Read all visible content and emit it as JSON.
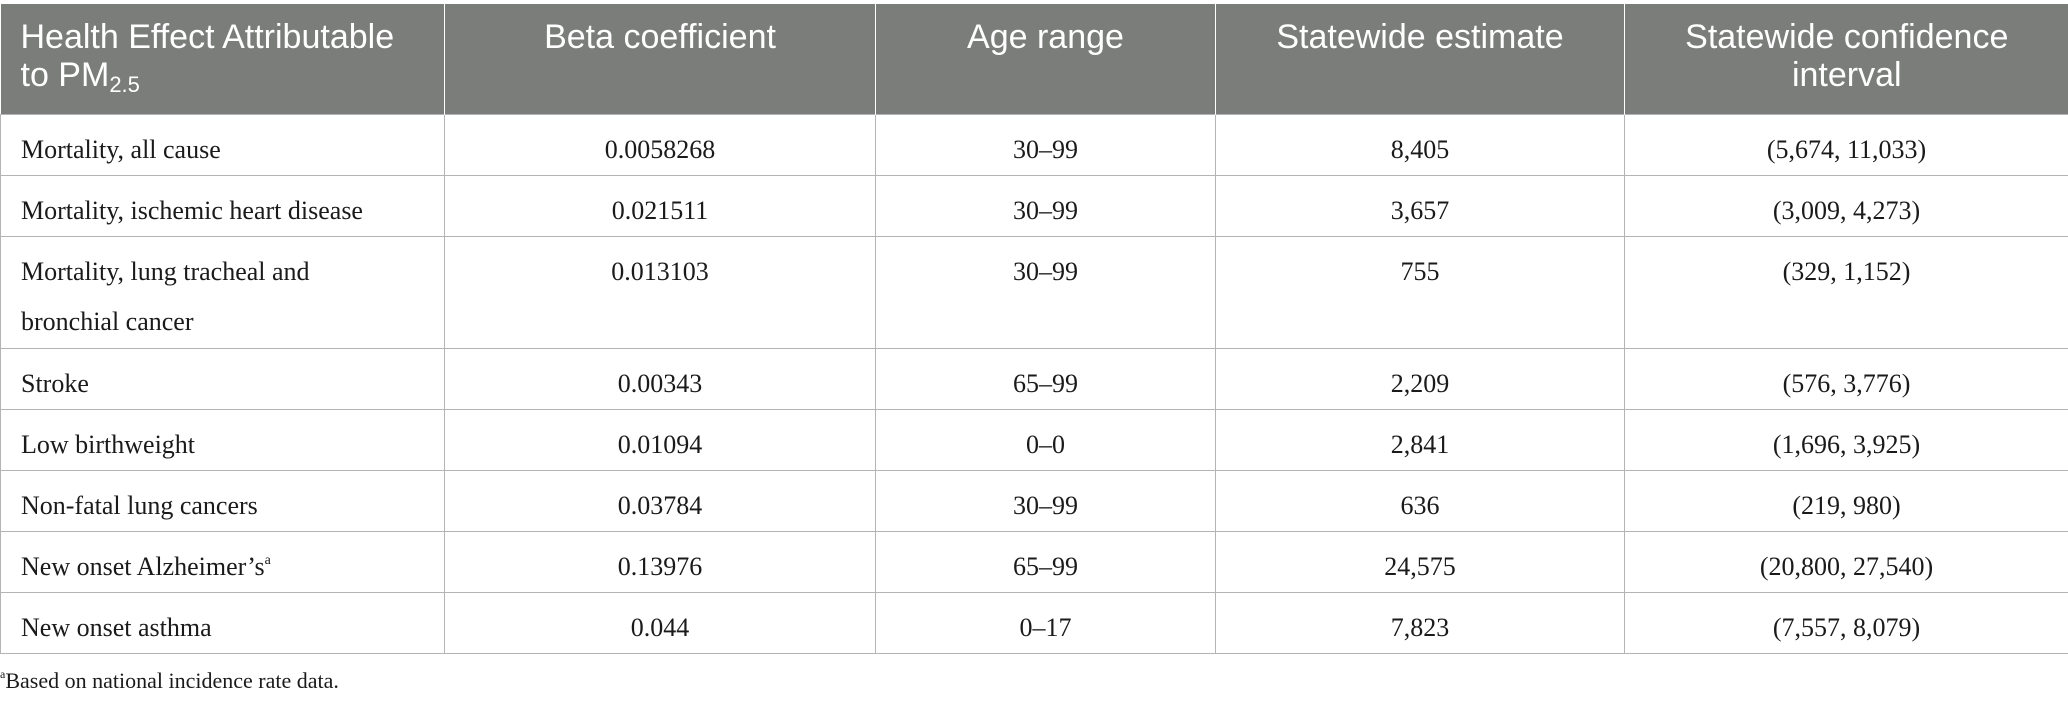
{
  "table": {
    "headers": [
      {
        "main": "Health Effect Attributable to PM",
        "sub": "2.5"
      },
      {
        "main": "Beta coefficient",
        "sub": ""
      },
      {
        "main": "Age range",
        "sub": ""
      },
      {
        "main": "Statewide estimate",
        "sub": ""
      },
      {
        "main": "Statewide confidence interval",
        "sub": ""
      }
    ],
    "rows": [
      {
        "effect": "Mortality, all cause",
        "sup": "",
        "beta": "0.0058268",
        "age": "30–99",
        "estimate": "8,405",
        "ci": "(5,674, 11,033)"
      },
      {
        "effect": "Mortality, ischemic heart disease",
        "sup": "",
        "beta": "0.021511",
        "age": "30–99",
        "estimate": "3,657",
        "ci": "(3,009, 4,273)"
      },
      {
        "effect": "Mortality, lung tracheal and bronchial cancer",
        "sup": "",
        "beta": "0.013103",
        "age": "30–99",
        "estimate": "755",
        "ci": "(329, 1,152)"
      },
      {
        "effect": "Stroke",
        "sup": "",
        "beta": "0.00343",
        "age": "65–99",
        "estimate": "2,209",
        "ci": "(576, 3,776)"
      },
      {
        "effect": "Low birthweight",
        "sup": "",
        "beta": "0.01094",
        "age": "0–0",
        "estimate": "2,841",
        "ci": "(1,696, 3,925)"
      },
      {
        "effect": "Non-fatal lung cancers",
        "sup": "",
        "beta": "0.03784",
        "age": "30–99",
        "estimate": "636",
        "ci": "(219, 980)"
      },
      {
        "effect": "New onset Alzheimer’s",
        "sup": "a",
        "beta": "0.13976",
        "age": "65–99",
        "estimate": "24,575",
        "ci": "(20,800, 27,540)"
      },
      {
        "effect": "New onset asthma",
        "sup": "",
        "beta": "0.044",
        "age": "0–17",
        "estimate": "7,823",
        "ci": "(7,557, 8,079)"
      }
    ]
  },
  "footnote": {
    "marker": "a",
    "text": "Based on national incidence rate data."
  }
}
